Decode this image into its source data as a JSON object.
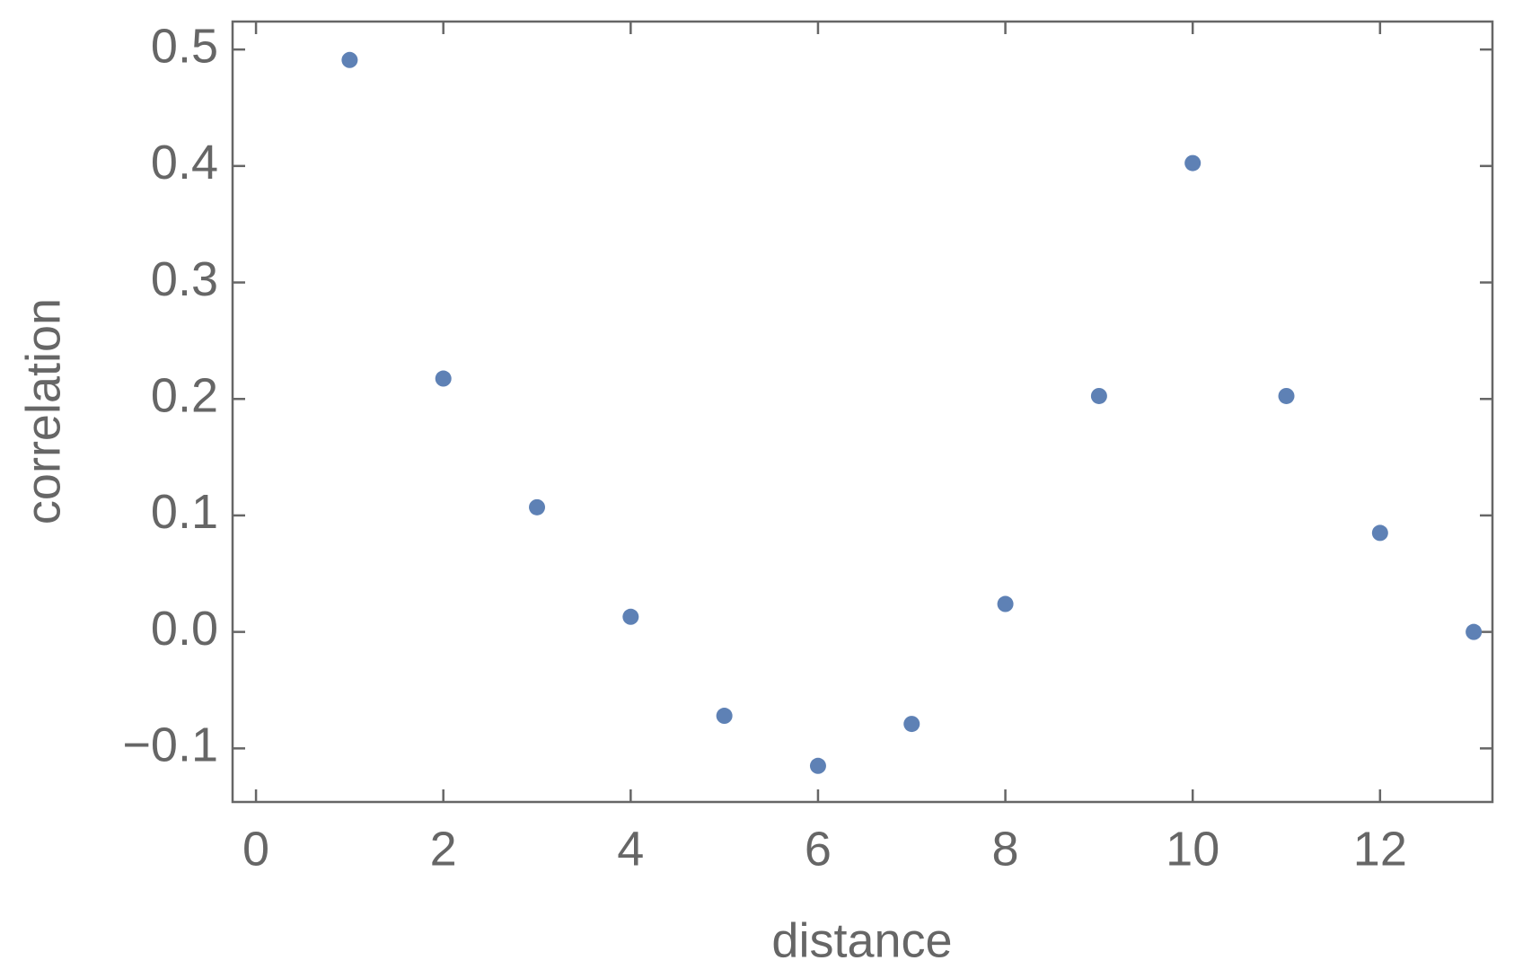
{
  "chart_data": {
    "type": "scatter",
    "x_label": "distance",
    "y_label": "correlation",
    "x": [
      1,
      2,
      3,
      4,
      5,
      6,
      7,
      8,
      9,
      10,
      11,
      12,
      13
    ],
    "series": [
      {
        "color": "#5e81b5",
        "values": [
          0.491,
          0.2175,
          0.107,
          0.013,
          -0.072,
          -0.115,
          -0.079,
          0.024,
          0.2025,
          0.4025,
          0.2025,
          0.085,
          0
        ]
      }
    ],
    "xlim": [
      -0.25,
      13.2
    ],
    "xticks": [
      0,
      2,
      4,
      6,
      8,
      10,
      12
    ],
    "ylim": [
      -0.146,
      0.524
    ],
    "yticks": [
      {
        "value": -0.1,
        "label": "−0.1"
      },
      {
        "value": 0,
        "label": "0.0"
      },
      0.1,
      0.2,
      0.3,
      0.4,
      0.5
    ],
    "grid": false
  }
}
